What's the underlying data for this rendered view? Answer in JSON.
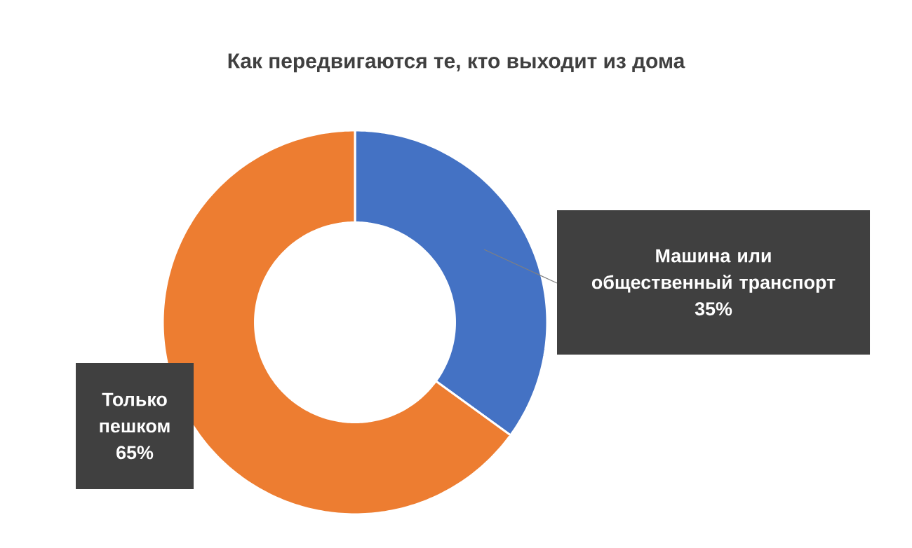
{
  "chart_data": {
    "type": "donut",
    "title": "Как передвигаются те, кто выходит из дома",
    "categories": [
      "Машина или общественный транспорт",
      "Только пешком"
    ],
    "values": [
      35,
      65
    ],
    "colors": [
      "#4472c4",
      "#ed7d31"
    ],
    "value_labels": [
      "35%",
      "65%"
    ]
  }
}
